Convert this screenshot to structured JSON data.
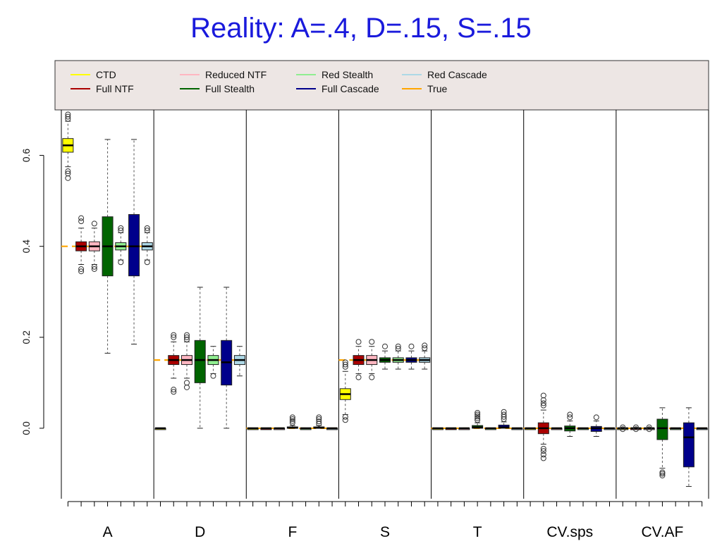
{
  "title": "Reality: A=.4, D=.15, S=.15",
  "chart_data": {
    "type": "box",
    "title": "Reality: A=.4, D=.15, S=.15",
    "xlabel": "",
    "ylabel": "",
    "ylim": [
      -0.155,
      0.7
    ],
    "y_ticks": [
      {
        "value": 0.0,
        "label": "0.0"
      },
      {
        "value": 0.2,
        "label": "0.2"
      },
      {
        "value": 0.4,
        "label": "0.4"
      },
      {
        "value": 0.6,
        "label": "0.6"
      }
    ],
    "legend": {
      "placement": "top",
      "entries": [
        {
          "label": "CTD",
          "color": "#ffff00"
        },
        {
          "label": "Full NTF",
          "color": "#aa0000"
        },
        {
          "label": "Reduced NTF",
          "color": "#ffb6c1"
        },
        {
          "label": "Full Stealth",
          "color": "#006400"
        },
        {
          "label": "Red Stealth",
          "color": "#90ee90"
        },
        {
          "label": "Full Cascade",
          "color": "#00008b"
        },
        {
          "label": "Red Cascade",
          "color": "#add8e6"
        },
        {
          "label": "True",
          "color": "#ffa500"
        }
      ]
    },
    "series": [
      "CTD",
      "Full NTF",
      "Reduced NTF",
      "Full Stealth",
      "Red Stealth",
      "Full Cascade",
      "Red Cascade"
    ],
    "true_color": "#ffa500",
    "panels": [
      {
        "label": "A",
        "true": 0.4,
        "boxes": [
          {
            "series": "CTD",
            "min": 0.575,
            "q1": 0.607,
            "median": 0.622,
            "q3": 0.637,
            "max": 0.675,
            "outliers": [
              0.68,
              0.685,
              0.69,
              0.565,
              0.56,
              0.55
            ]
          },
          {
            "series": "Full NTF",
            "min": 0.36,
            "q1": 0.39,
            "median": 0.4,
            "q3": 0.41,
            "max": 0.44,
            "outliers": [
              0.455,
              0.462,
              0.35,
              0.345
            ]
          },
          {
            "series": "Reduced NTF",
            "min": 0.36,
            "q1": 0.39,
            "median": 0.4,
            "q3": 0.41,
            "max": 0.44,
            "outliers": [
              0.45,
              0.355,
              0.35
            ]
          },
          {
            "series": "Full Stealth",
            "min": 0.165,
            "q1": 0.335,
            "median": 0.4,
            "q3": 0.465,
            "max": 0.635,
            "outliers": []
          },
          {
            "series": "Red Stealth",
            "min": 0.37,
            "q1": 0.392,
            "median": 0.4,
            "q3": 0.408,
            "max": 0.43,
            "outliers": [
              0.44,
              0.435,
              0.365
            ]
          },
          {
            "series": "Full Cascade",
            "min": 0.185,
            "q1": 0.335,
            "median": 0.4,
            "q3": 0.47,
            "max": 0.635,
            "outliers": []
          },
          {
            "series": "Red Cascade",
            "min": 0.37,
            "q1": 0.392,
            "median": 0.4,
            "q3": 0.408,
            "max": 0.43,
            "outliers": [
              0.44,
              0.435,
              0.365
            ]
          }
        ]
      },
      {
        "label": "D",
        "true": 0.15,
        "boxes": [
          {
            "series": "CTD",
            "min": 0.0,
            "q1": 0.0,
            "median": 0.0,
            "q3": 0.0,
            "max": 0.0,
            "outliers": []
          },
          {
            "series": "Full NTF",
            "min": 0.11,
            "q1": 0.14,
            "median": 0.15,
            "q3": 0.16,
            "max": 0.19,
            "outliers": [
              0.205,
              0.2,
              0.085,
              0.08
            ]
          },
          {
            "series": "Reduced NTF",
            "min": 0.11,
            "q1": 0.14,
            "median": 0.15,
            "q3": 0.16,
            "max": 0.19,
            "outliers": [
              0.205,
              0.2,
              0.195,
              0.1,
              0.09
            ]
          },
          {
            "series": "Full Stealth",
            "min": 0.0,
            "q1": 0.1,
            "median": 0.15,
            "q3": 0.193,
            "max": 0.31,
            "outliers": []
          },
          {
            "series": "Red Stealth",
            "min": 0.12,
            "q1": 0.14,
            "median": 0.15,
            "q3": 0.16,
            "max": 0.18,
            "outliers": [
              0.115
            ]
          },
          {
            "series": "Full Cascade",
            "min": 0.0,
            "q1": 0.095,
            "median": 0.145,
            "q3": 0.193,
            "max": 0.31,
            "outliers": []
          },
          {
            "series": "Red Cascade",
            "min": 0.115,
            "q1": 0.14,
            "median": 0.15,
            "q3": 0.16,
            "max": 0.18,
            "outliers": []
          }
        ]
      },
      {
        "label": "F",
        "true": 0.0,
        "boxes": [
          {
            "series": "CTD",
            "min": 0.0,
            "q1": 0.0,
            "median": 0.0,
            "q3": 0.0,
            "max": 0.0,
            "outliers": []
          },
          {
            "series": "Full NTF",
            "min": 0.0,
            "q1": 0.0,
            "median": 0.0,
            "q3": 0.0,
            "max": 0.0,
            "outliers": []
          },
          {
            "series": "Reduced NTF",
            "min": 0.0,
            "q1": 0.0,
            "median": 0.0,
            "q3": 0.0,
            "max": 0.0,
            "outliers": []
          },
          {
            "series": "Full Stealth",
            "min": 0.0,
            "q1": 0.0,
            "median": 0.001,
            "q3": 0.003,
            "max": 0.006,
            "outliers": [
              0.012,
              0.016,
              0.02,
              0.024
            ]
          },
          {
            "series": "Red Stealth",
            "min": 0.0,
            "q1": 0.0,
            "median": 0.0,
            "q3": 0.0,
            "max": 0.0,
            "outliers": []
          },
          {
            "series": "Full Cascade",
            "min": 0.0,
            "q1": 0.0,
            "median": 0.001,
            "q3": 0.003,
            "max": 0.006,
            "outliers": [
              0.01,
              0.015,
              0.02,
              0.024
            ]
          },
          {
            "series": "Red Cascade",
            "min": 0.0,
            "q1": 0.0,
            "median": 0.0,
            "q3": 0.0,
            "max": 0.0,
            "outliers": []
          }
        ]
      },
      {
        "label": "S",
        "true": 0.15,
        "boxes": [
          {
            "series": "CTD",
            "min": 0.03,
            "q1": 0.063,
            "median": 0.075,
            "q3": 0.087,
            "max": 0.125,
            "outliers": [
              0.135,
              0.14,
              0.145,
              0.025,
              0.018
            ]
          },
          {
            "series": "Full NTF",
            "min": 0.12,
            "q1": 0.14,
            "median": 0.15,
            "q3": 0.16,
            "max": 0.18,
            "outliers": [
              0.19,
              0.112
            ]
          },
          {
            "series": "Reduced NTF",
            "min": 0.12,
            "q1": 0.14,
            "median": 0.15,
            "q3": 0.16,
            "max": 0.18,
            "outliers": [
              0.19,
              0.112
            ]
          },
          {
            "series": "Full Stealth",
            "min": 0.13,
            "q1": 0.145,
            "median": 0.15,
            "q3": 0.155,
            "max": 0.17,
            "outliers": [
              0.18
            ]
          },
          {
            "series": "Red Stealth",
            "min": 0.13,
            "q1": 0.145,
            "median": 0.15,
            "q3": 0.155,
            "max": 0.17,
            "outliers": [
              0.18,
              0.175
            ]
          },
          {
            "series": "Full Cascade",
            "min": 0.13,
            "q1": 0.145,
            "median": 0.15,
            "q3": 0.155,
            "max": 0.17,
            "outliers": [
              0.18
            ]
          },
          {
            "series": "Red Cascade",
            "min": 0.13,
            "q1": 0.145,
            "median": 0.15,
            "q3": 0.155,
            "max": 0.17,
            "outliers": [
              0.182,
              0.176
            ]
          }
        ]
      },
      {
        "label": "T",
        "true": 0.0,
        "boxes": [
          {
            "series": "CTD",
            "min": 0.0,
            "q1": 0.0,
            "median": 0.0,
            "q3": 0.0,
            "max": 0.0,
            "outliers": []
          },
          {
            "series": "Full NTF",
            "min": 0.0,
            "q1": 0.0,
            "median": 0.0,
            "q3": 0.0,
            "max": 0.0,
            "outliers": []
          },
          {
            "series": "Reduced NTF",
            "min": 0.0,
            "q1": 0.0,
            "median": 0.0,
            "q3": 0.0,
            "max": 0.0,
            "outliers": []
          },
          {
            "series": "Full Stealth",
            "min": 0.0,
            "q1": 0.0,
            "median": 0.002,
            "q3": 0.006,
            "max": 0.012,
            "outliers": [
              0.018,
              0.022,
              0.026,
              0.03,
              0.034
            ]
          },
          {
            "series": "Red Stealth",
            "min": 0.0,
            "q1": 0.0,
            "median": 0.0,
            "q3": 0.0,
            "max": 0.0,
            "outliers": []
          },
          {
            "series": "Full Cascade",
            "min": 0.0,
            "q1": 0.0,
            "median": 0.002,
            "q3": 0.007,
            "max": 0.014,
            "outliers": [
              0.02,
              0.025,
              0.03,
              0.036
            ]
          },
          {
            "series": "Red Cascade",
            "min": 0.0,
            "q1": 0.0,
            "median": 0.0,
            "q3": 0.0,
            "max": 0.0,
            "outliers": []
          }
        ]
      },
      {
        "label": "CV.sps",
        "true": 0.0,
        "boxes": [
          {
            "series": "CTD",
            "min": 0.0,
            "q1": 0.0,
            "median": 0.0,
            "q3": 0.0,
            "max": 0.0,
            "outliers": []
          },
          {
            "series": "Full NTF",
            "min": -0.035,
            "q1": -0.012,
            "median": 0.0,
            "q3": 0.012,
            "max": 0.04,
            "outliers": [
              0.05,
              0.055,
              0.062,
              0.072,
              -0.045,
              -0.05,
              -0.058,
              -0.066
            ]
          },
          {
            "series": "Reduced NTF",
            "min": 0.0,
            "q1": 0.0,
            "median": 0.0,
            "q3": 0.0,
            "max": 0.0,
            "outliers": []
          },
          {
            "series": "Full Stealth",
            "min": -0.018,
            "q1": -0.006,
            "median": 0.0,
            "q3": 0.005,
            "max": 0.016,
            "outliers": [
              0.024,
              0.03
            ]
          },
          {
            "series": "Red Stealth",
            "min": 0.0,
            "q1": 0.0,
            "median": 0.0,
            "q3": 0.0,
            "max": 0.0,
            "outliers": []
          },
          {
            "series": "Full Cascade",
            "min": -0.018,
            "q1": -0.007,
            "median": 0.0,
            "q3": 0.004,
            "max": 0.016,
            "outliers": [
              0.024
            ]
          },
          {
            "series": "Red Cascade",
            "min": 0.0,
            "q1": 0.0,
            "median": 0.0,
            "q3": 0.0,
            "max": 0.0,
            "outliers": []
          }
        ]
      },
      {
        "label": "CV.AF",
        "true": 0.0,
        "boxes": [
          {
            "series": "CTD",
            "min": 0.0,
            "q1": 0.0,
            "median": 0.0,
            "q3": 0.0,
            "max": 0.0,
            "outliers": [
              0.002,
              -0.002
            ]
          },
          {
            "series": "Full NTF",
            "min": 0.0,
            "q1": 0.0,
            "median": 0.0,
            "q3": 0.0,
            "max": 0.0,
            "outliers": [
              0.002,
              -0.002
            ]
          },
          {
            "series": "Reduced NTF",
            "min": 0.0,
            "q1": 0.0,
            "median": 0.0,
            "q3": 0.0,
            "max": 0.0,
            "outliers": [
              0.002,
              -0.002
            ]
          },
          {
            "series": "Full Stealth",
            "min": -0.088,
            "q1": -0.025,
            "median": 0.0,
            "q3": 0.02,
            "max": 0.045,
            "outliers": [
              -0.097,
              -0.1,
              -0.104
            ]
          },
          {
            "series": "Red Stealth",
            "min": 0.0,
            "q1": 0.0,
            "median": 0.0,
            "q3": 0.0,
            "max": 0.0,
            "outliers": []
          },
          {
            "series": "Full Cascade",
            "min": -0.128,
            "q1": -0.085,
            "median": -0.02,
            "q3": 0.012,
            "max": 0.045,
            "outliers": []
          },
          {
            "series": "Red Cascade",
            "min": 0.0,
            "q1": 0.0,
            "median": 0.0,
            "q3": 0.0,
            "max": 0.0,
            "outliers": []
          }
        ]
      }
    ]
  }
}
